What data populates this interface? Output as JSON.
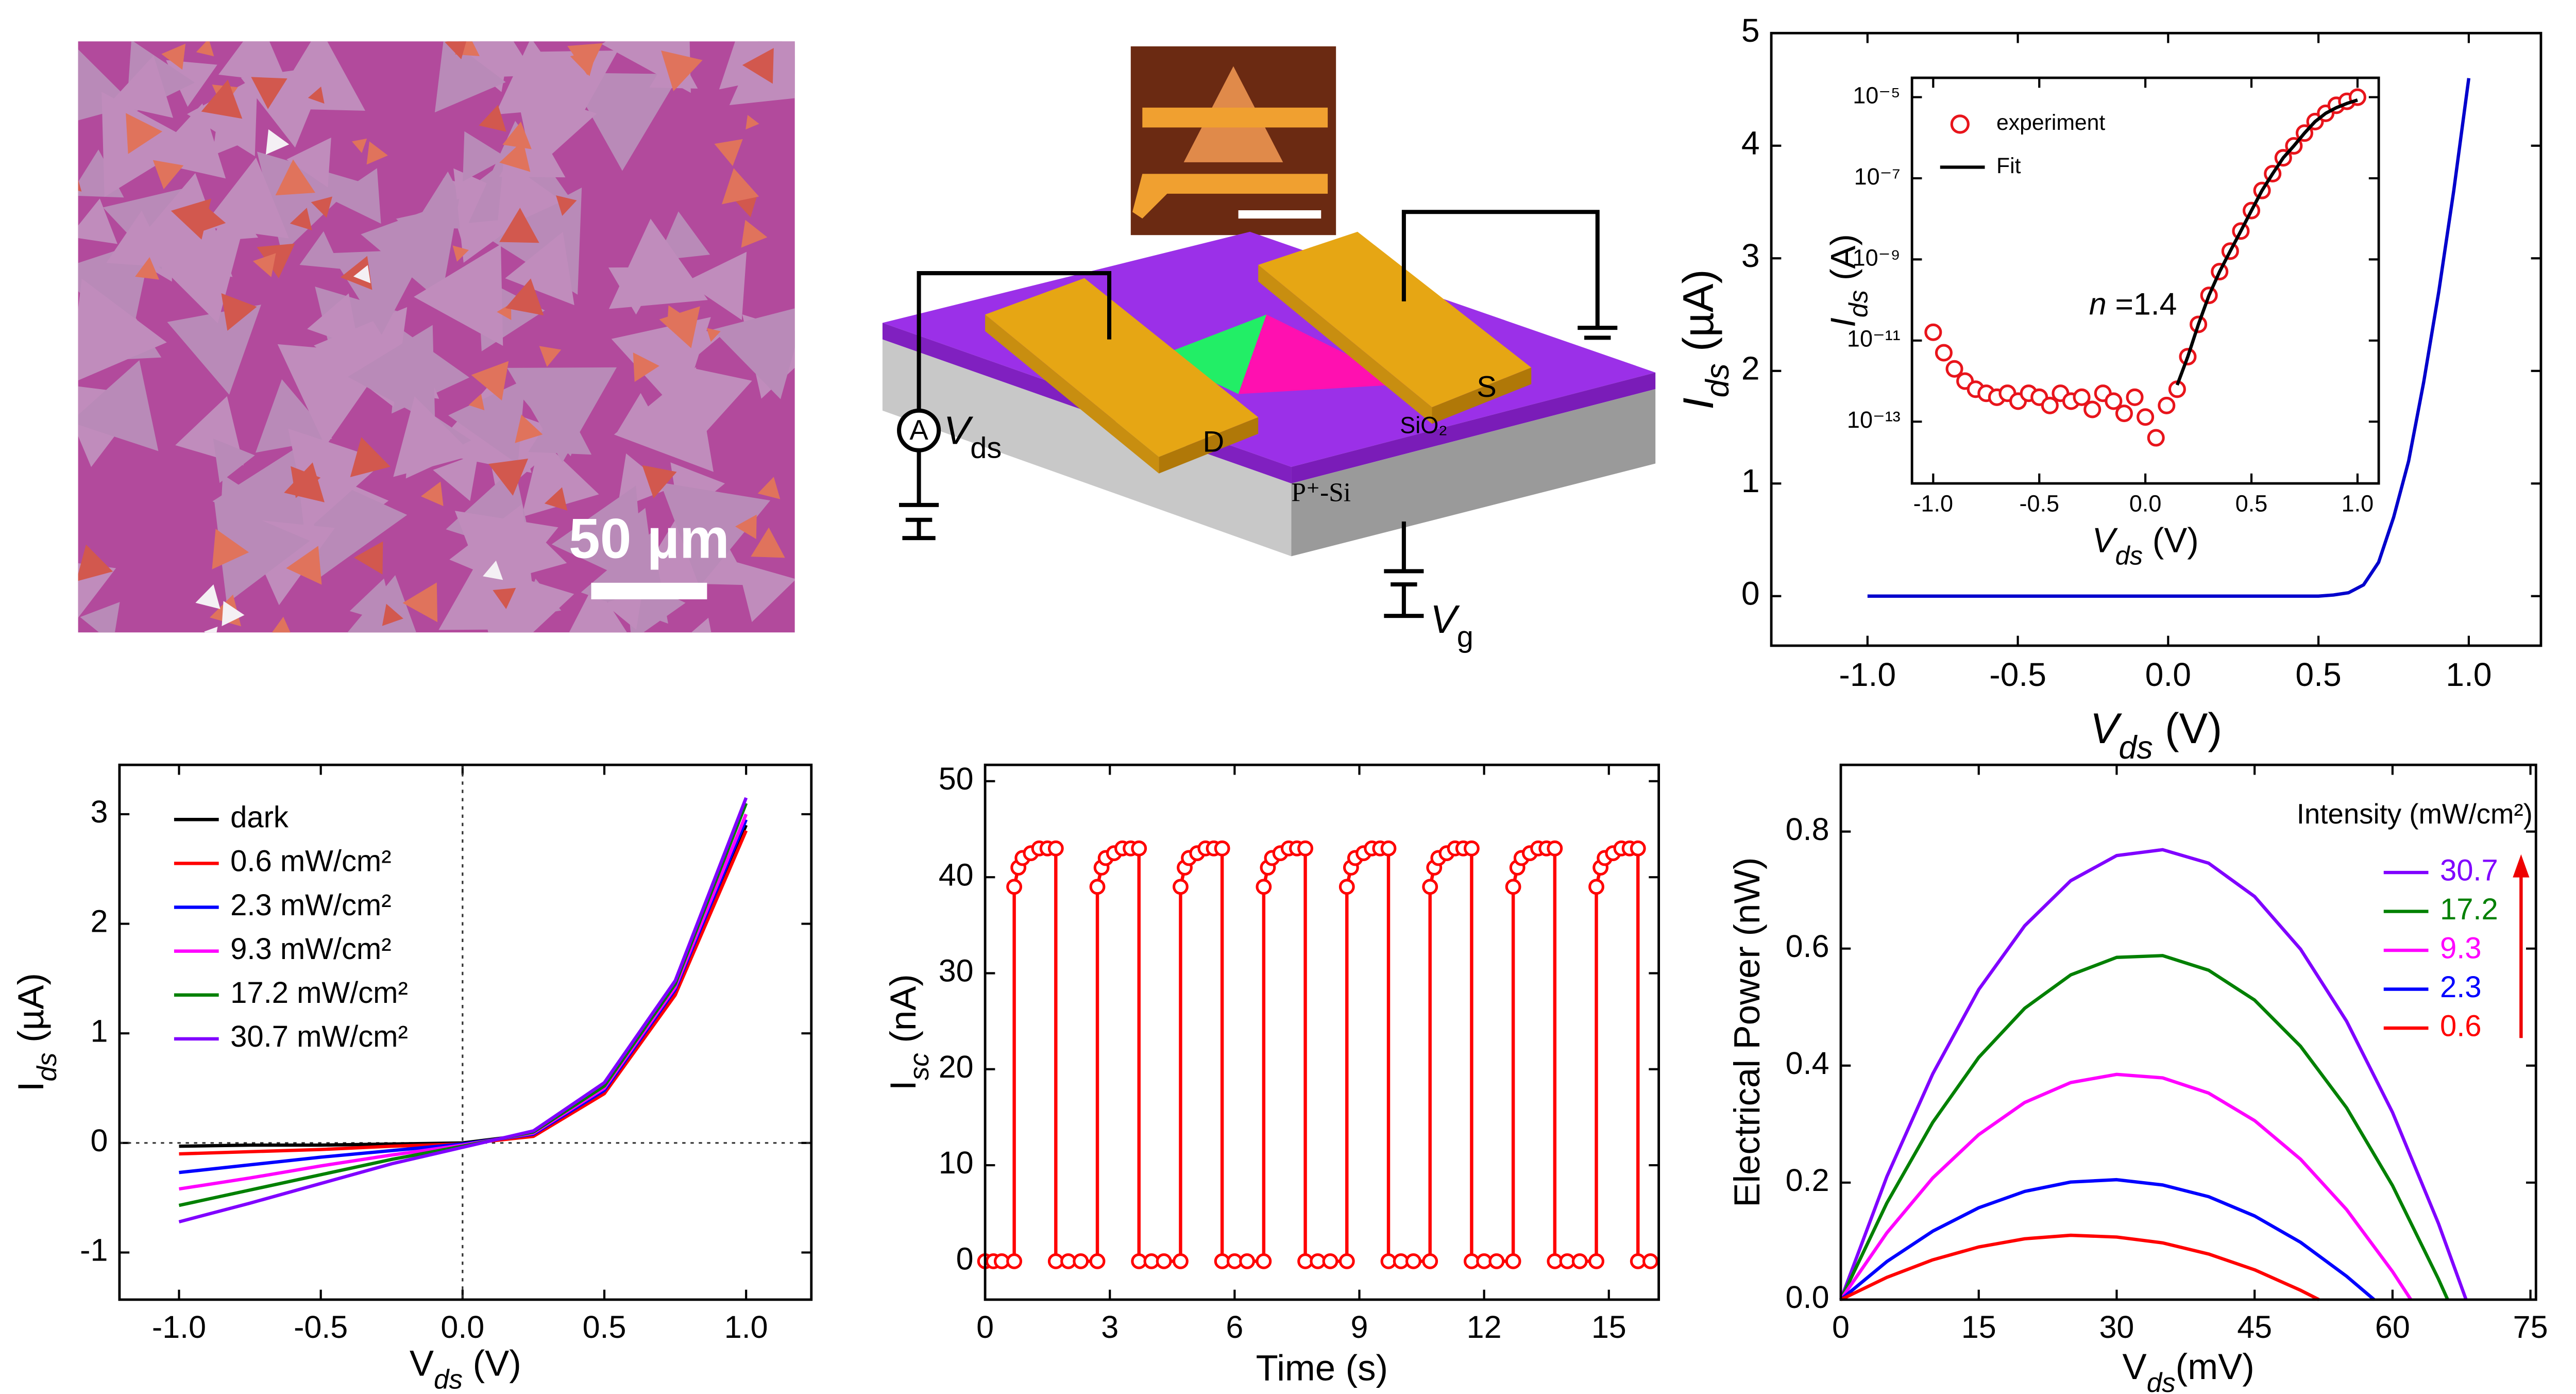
{
  "micrograph": {
    "scale_bar": "50 µm"
  },
  "schematic": {
    "meter": "A",
    "source_voltage": [
      "V",
      "ds"
    ],
    "drain": "D",
    "source": "S",
    "oxide": "SiO₂",
    "substrate": "P⁺-Si",
    "gate_voltage": [
      "V",
      "g"
    ]
  },
  "chart_data": [
    {
      "type": "line",
      "x_label": [
        "V",
        "ds",
        " (V)"
      ],
      "y_label": [
        "I",
        "ds",
        " (µA)"
      ],
      "xlim": [
        -1.32,
        1.24
      ],
      "ylim": [
        -0.44,
        5
      ],
      "xticks": [
        {
          "value": -1,
          "label": "-1.0"
        },
        -0.5,
        {
          "value": 0,
          "label": "0.0"
        },
        0.5,
        {
          "value": 1,
          "label": "1.0"
        }
      ],
      "yticks": [
        0,
        1,
        2,
        3,
        4,
        5
      ],
      "series": [
        {
          "color": "#0000cc",
          "x": [
            -1,
            -0.5,
            0,
            0.5,
            0.55,
            0.6,
            0.65,
            0.7,
            0.75,
            0.8,
            0.85,
            0.9,
            0.95,
            1.0
          ],
          "values": [
            0,
            0,
            0,
            0,
            0.01,
            0.03,
            0.1,
            0.3,
            0.7,
            1.2,
            1.9,
            2.7,
            3.6,
            4.6
          ]
        }
      ]
    },
    {
      "type": "scatter",
      "yscale": "log",
      "x_label": [
        "V",
        "ds",
        " (V)"
      ],
      "y_label": [
        "I",
        "ds",
        " (A)"
      ],
      "annotation": [
        "n",
        " =1.4"
      ],
      "xlim": [
        -1.1,
        1.1
      ],
      "ylim": [
        3e-15,
        3e-05
      ],
      "xticks": [
        {
          "value": -1,
          "label": "-1.0"
        },
        -0.5,
        {
          "value": 0,
          "label": "0.0"
        },
        0.5,
        {
          "value": 1,
          "label": "1.0"
        }
      ],
      "yticks": [
        {
          "value": 1e-13,
          "label": "10⁻¹³"
        },
        {
          "value": 1e-11,
          "label": "10⁻¹¹"
        },
        {
          "value": 1e-09,
          "label": "10⁻⁹"
        },
        {
          "value": 1e-07,
          "label": "10⁻⁷"
        },
        {
          "value": 1e-05,
          "label": "10⁻⁵"
        }
      ],
      "series": [
        {
          "name": "experiment",
          "color": "#e8141b",
          "marker": "circle",
          "x": [
            -1,
            -0.95,
            -0.9,
            -0.85,
            -0.8,
            -0.75,
            -0.7,
            -0.65,
            -0.6,
            -0.55,
            -0.5,
            -0.45,
            -0.4,
            -0.35,
            -0.3,
            -0.25,
            -0.2,
            -0.15,
            -0.1,
            -0.05,
            0,
            0.05,
            0.1,
            0.15,
            0.2,
            0.25,
            0.3,
            0.35,
            0.4,
            0.45,
            0.5,
            0.55,
            0.6,
            0.65,
            0.7,
            0.75,
            0.8,
            0.85,
            0.9,
            0.95,
            1.0
          ],
          "values": [
            1.6e-11,
            5e-12,
            2e-12,
            1e-12,
            6.3e-13,
            5e-13,
            4e-13,
            5e-13,
            3.2e-13,
            5e-13,
            4e-13,
            2.5e-13,
            5e-13,
            3.2e-13,
            4e-13,
            2e-13,
            5e-13,
            3.2e-13,
            1.6e-13,
            4e-13,
            1.3e-13,
            4e-14,
            2.5e-13,
            6.3e-13,
            4e-12,
            2.5e-11,
            1.3e-10,
            5e-10,
            1.6e-09,
            5e-09,
            1.6e-08,
            5e-08,
            1.3e-07,
            3.2e-07,
            6.3e-07,
            1.3e-06,
            2.5e-06,
            4e-06,
            6.3e-06,
            7.9e-06,
            1e-05
          ]
        },
        {
          "name": "Fit",
          "color": "#000000",
          "style": "line",
          "x": [
            0.15,
            0.2,
            0.25,
            0.3,
            0.35,
            0.4,
            0.45,
            0.5,
            0.55,
            0.6,
            0.65,
            0.7,
            0.75,
            0.8,
            0.85,
            0.9,
            0.95,
            1.0
          ],
          "values": [
            8e-13,
            4e-12,
            2.5e-11,
            1.3e-10,
            5e-10,
            1.6e-09,
            5e-09,
            1.6e-08,
            5e-08,
            1.3e-07,
            3.2e-07,
            6.3e-07,
            1.3e-06,
            2.5e-06,
            4e-06,
            5.5e-06,
            7e-06,
            8.5e-06
          ]
        }
      ]
    },
    {
      "type": "line",
      "zero_lines": true,
      "x_label": [
        "V",
        "ds",
        " (V)"
      ],
      "y_label": [
        "I",
        "ds",
        " (µA)"
      ],
      "xlim": [
        -1.21,
        1.23
      ],
      "ylim": [
        -1.43,
        3.45
      ],
      "xticks": [
        {
          "value": -1,
          "label": "-1.0"
        },
        -0.5,
        {
          "value": 0,
          "label": "0.0"
        },
        0.5,
        {
          "value": 1,
          "label": "1.0"
        }
      ],
      "yticks": [
        -1,
        0,
        1,
        2,
        3
      ],
      "x": [
        -1,
        -0.75,
        -0.5,
        -0.25,
        0,
        0.25,
        0.5,
        0.75,
        1
      ],
      "series": [
        {
          "name": "dark",
          "color": "#000000",
          "values": [
            -0.03,
            -0.02,
            -0.02,
            -0.01,
            0,
            0.08,
            0.5,
            1.4,
            2.9
          ]
        },
        {
          "name": "0.6 mW/cm²",
          "color": "#ff0000",
          "values": [
            -0.1,
            -0.08,
            -0.06,
            -0.03,
            -0.01,
            0.06,
            0.45,
            1.35,
            2.85
          ]
        },
        {
          "name": "2.3 mW/cm²",
          "color": "#0000ff",
          "values": [
            -0.27,
            -0.2,
            -0.13,
            -0.07,
            -0.01,
            0.08,
            0.48,
            1.4,
            2.95
          ]
        },
        {
          "name": "9.3 mW/cm²",
          "color": "#ff00ff",
          "values": [
            -0.42,
            -0.32,
            -0.21,
            -0.11,
            -0.02,
            0.09,
            0.5,
            1.42,
            3.0
          ]
        },
        {
          "name": "17.2 mW/cm²",
          "color": "#008000",
          "values": [
            -0.57,
            -0.43,
            -0.29,
            -0.15,
            -0.03,
            0.1,
            0.52,
            1.45,
            3.1
          ]
        },
        {
          "name": "30.7 mW/cm²",
          "color": "#8000ff",
          "values": [
            -0.72,
            -0.55,
            -0.37,
            -0.19,
            -0.04,
            0.11,
            0.55,
            1.48,
            3.15
          ]
        }
      ]
    },
    {
      "type": "line",
      "markers": true,
      "x_label": "Time (s)",
      "y_label": [
        "I",
        "sc",
        " (nA)"
      ],
      "xlim": [
        0,
        16.2
      ],
      "ylim": [
        -4,
        51.7
      ],
      "xticks": [
        0,
        3,
        6,
        9,
        12,
        15
      ],
      "yticks": [
        0,
        10,
        20,
        30,
        40,
        50
      ],
      "x": [
        0,
        0.2,
        0.4,
        0.7,
        0.7,
        0.8,
        0.9,
        1.1,
        1.3,
        1.5,
        1.7,
        1.7,
        2.0,
        2.3,
        2.7,
        2.7,
        2.8,
        2.9,
        3.1,
        3.3,
        3.5,
        3.7,
        3.7,
        4.0,
        4.3,
        4.7,
        4.7,
        4.8,
        4.9,
        5.1,
        5.3,
        5.5,
        5.7,
        5.7,
        6.0,
        6.3,
        6.7,
        6.7,
        6.8,
        6.9,
        7.1,
        7.3,
        7.5,
        7.7,
        7.7,
        8.0,
        8.3,
        8.7,
        8.7,
        8.8,
        8.9,
        9.1,
        9.3,
        9.5,
        9.7,
        9.7,
        10.0,
        10.3,
        10.7,
        10.7,
        10.8,
        10.9,
        11.1,
        11.3,
        11.5,
        11.7,
        11.7,
        12.0,
        12.3,
        12.7,
        12.7,
        12.8,
        12.9,
        13.1,
        13.3,
        13.5,
        13.7,
        13.7,
        14.0,
        14.3,
        14.7,
        14.7,
        14.8,
        14.9,
        15.1,
        15.3,
        15.5,
        15.7,
        15.7,
        16.0
      ],
      "series": [
        {
          "color": "#ff0000",
          "values": [
            0,
            0,
            0,
            0,
            39,
            41,
            42,
            42.5,
            43,
            43,
            43,
            0,
            0,
            0,
            0,
            39,
            41,
            42,
            42.5,
            43,
            43,
            43,
            0,
            0,
            0,
            0,
            39,
            41,
            42,
            42.5,
            43,
            43,
            43,
            0,
            0,
            0,
            0,
            39,
            41,
            42,
            42.5,
            43,
            43,
            43,
            0,
            0,
            0,
            0,
            39,
            41,
            42,
            42.5,
            43,
            43,
            43,
            0,
            0,
            0,
            0,
            39,
            41,
            42,
            42.5,
            43,
            43,
            43,
            0,
            0,
            0,
            0,
            39,
            41,
            42,
            42.5,
            43,
            43,
            43,
            0,
            0,
            0,
            0,
            39,
            41,
            42,
            42.5,
            43,
            43,
            43,
            0,
            0
          ]
        }
      ]
    },
    {
      "type": "line",
      "x_label": [
        "V",
        "ds",
        "(mV)"
      ],
      "y_label": "Electrical Power (nW)",
      "legend_title": "Intensity (mW/cm²)",
      "xlim": [
        0,
        75.6
      ],
      "ylim": [
        0,
        0.914
      ],
      "xticks": [
        0,
        15,
        30,
        45,
        60,
        75
      ],
      "yticks": [
        {
          "value": 0,
          "label": "0.0"
        },
        0.2,
        0.4,
        0.6,
        0.8
      ],
      "series": [
        {
          "name": "30.7",
          "color": "#8000ff",
          "x": [
            0,
            5,
            10,
            15,
            20,
            25,
            30,
            35,
            40,
            45,
            50,
            55,
            60,
            65,
            68
          ],
          "values": [
            0,
            0.21,
            0.386,
            0.53,
            0.639,
            0.716,
            0.759,
            0.769,
            0.746,
            0.689,
            0.599,
            0.476,
            0.32,
            0.13,
            0
          ]
        },
        {
          "name": "17.2",
          "color": "#008000",
          "x": [
            0,
            5,
            10,
            15,
            20,
            25,
            30,
            35,
            40,
            45,
            50,
            55,
            60,
            65,
            66
          ],
          "values": [
            0,
            0.165,
            0.303,
            0.414,
            0.498,
            0.555,
            0.585,
            0.588,
            0.563,
            0.512,
            0.433,
            0.328,
            0.195,
            0.035,
            0
          ]
        },
        {
          "name": "9.3",
          "color": "#ff00ff",
          "x": [
            0,
            5,
            10,
            15,
            20,
            25,
            30,
            35,
            40,
            45,
            50,
            55,
            60,
            62
          ],
          "values": [
            0,
            0.114,
            0.208,
            0.282,
            0.337,
            0.371,
            0.385,
            0.379,
            0.353,
            0.306,
            0.24,
            0.154,
            0.048,
            0
          ]
        },
        {
          "name": "2.3",
          "color": "#0000ff",
          "x": [
            0,
            5,
            10,
            15,
            20,
            25,
            30,
            35,
            40,
            45,
            50,
            55,
            58
          ],
          "values": [
            0,
            0.065,
            0.117,
            0.157,
            0.185,
            0.201,
            0.205,
            0.196,
            0.176,
            0.143,
            0.098,
            0.04,
            0
          ]
        },
        {
          "name": "0.6",
          "color": "#ff0000",
          "x": [
            0,
            5,
            10,
            15,
            20,
            25,
            30,
            35,
            40,
            45,
            50,
            52
          ],
          "values": [
            0,
            0.038,
            0.068,
            0.09,
            0.104,
            0.11,
            0.107,
            0.097,
            0.078,
            0.051,
            0.016,
            0
          ]
        }
      ]
    }
  ]
}
